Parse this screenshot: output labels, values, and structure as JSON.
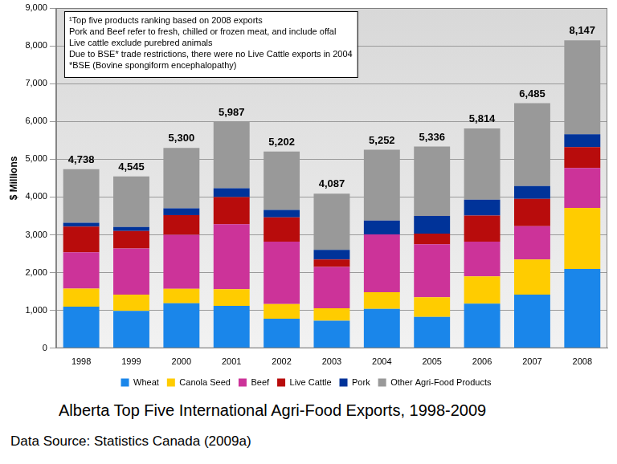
{
  "chart_data": {
    "type": "bar",
    "title": "Alberta Top Five International Agri-Food Exports, 1998-2009",
    "source": "Data Source: Statistics Canada (2009a)",
    "notes": [
      "¹Top five products ranking based on 2008 exports",
      "Pork and Beef refer to fresh, chilled or frozen meat, and include offal",
      "Live cattle exclude purebred animals",
      "Due to BSE* trade restrictions, there were no Live Cattle exports in 2004",
      "*BSE (Bovine spongiform encephalopathy)"
    ],
    "y_label": "$ Millions",
    "categories": [
      "1998",
      "1999",
      "2000",
      "2001",
      "2002",
      "2003",
      "2004",
      "2005",
      "2006",
      "2007",
      "2008"
    ],
    "series": [
      {
        "name": "Wheat",
        "color": "#1a86ea",
        "values": [
          1100,
          990,
          1190,
          1120,
          780,
          730,
          1040,
          830,
          1180,
          1420,
          2100
        ]
      },
      {
        "name": "Canola Seed",
        "color": "#ffcc00",
        "values": [
          480,
          430,
          380,
          440,
          390,
          330,
          440,
          520,
          720,
          930,
          1610
        ]
      },
      {
        "name": "Beef",
        "color": "#cc3399",
        "values": [
          960,
          1220,
          1430,
          1720,
          1650,
          1090,
          1530,
          1400,
          920,
          880,
          1060
        ]
      },
      {
        "name": "Live Cattle",
        "color": "#b80c0c",
        "values": [
          680,
          460,
          520,
          720,
          640,
          200,
          0,
          280,
          690,
          720,
          550
        ]
      },
      {
        "name": "Pork",
        "color": "#003399",
        "values": [
          100,
          110,
          180,
          230,
          200,
          250,
          370,
          470,
          420,
          340,
          340
        ]
      },
      {
        "name": "Other Agri-Food Products",
        "color": "#999999",
        "values": [
          1418,
          1335,
          1600,
          1757,
          1542,
          1487,
          1872,
          1836,
          1884,
          2195,
          2487
        ]
      }
    ],
    "totals": [
      4738,
      4545,
      5300,
      5987,
      5202,
      4087,
      5252,
      5336,
      5814,
      6485,
      8147
    ],
    "total_labels": [
      "4,738",
      "4,545",
      "5,300",
      "5,987",
      "5,202",
      "4,087",
      "5,252",
      "5,336",
      "5,814",
      "6,485",
      "8,147"
    ],
    "stacked": true,
    "ylim": [
      0,
      9000
    ],
    "yticks": [
      0,
      {
        "value": 1000,
        "label": "1,000"
      },
      {
        "value": 2000,
        "label": "2,000"
      },
      {
        "value": 3000,
        "label": "3,000"
      },
      {
        "value": 4000,
        "label": "4,000"
      },
      {
        "value": 5000,
        "label": "5,000"
      },
      {
        "value": 6000,
        "label": "6,000"
      },
      {
        "value": 7000,
        "label": "7,000"
      },
      {
        "value": 8000,
        "label": "8,000"
      },
      {
        "value": 9000,
        "label": "9,000"
      }
    ],
    "grid": true,
    "legend": "bottom"
  }
}
